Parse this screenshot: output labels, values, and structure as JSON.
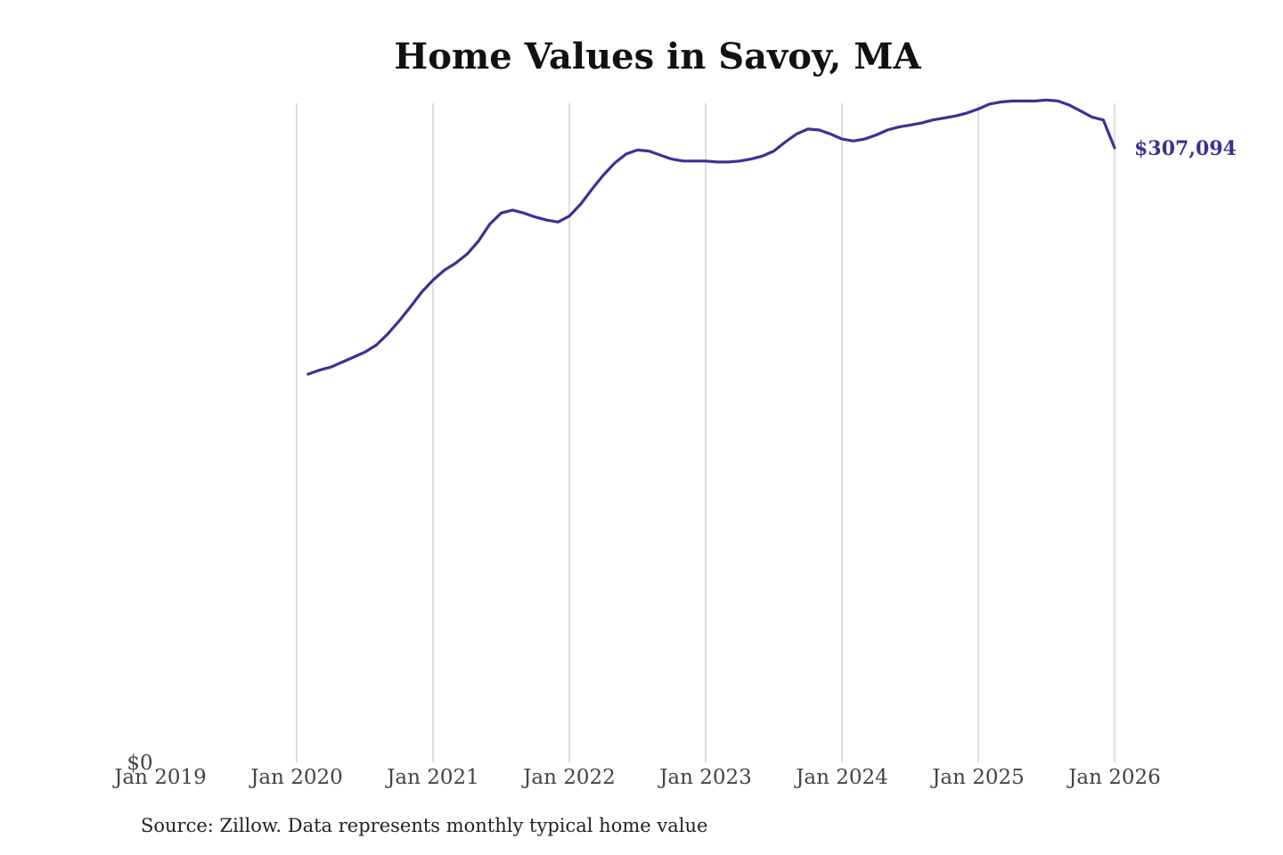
{
  "chart_data": {
    "type": "line",
    "title": "Home Values in Savoy, MA",
    "xlabel": "",
    "ylabel": "",
    "x_ticks": [
      "Jan 2019",
      "Jan 2020",
      "Jan 2021",
      "Jan 2022",
      "Jan 2023",
      "Jan 2024",
      "Jan 2025",
      "Jan 2026"
    ],
    "y_ticks": [
      "$0"
    ],
    "ylim": [
      0,
      324000
    ],
    "grid": "vertical",
    "line_color": "#3a3296",
    "end_label": "$307,094",
    "series": [
      {
        "values": [
          {
            "x": "2020-02",
            "y": 194000
          },
          {
            "x": "2020-03",
            "y": 196000
          },
          {
            "x": "2020-04",
            "y": 197500
          },
          {
            "x": "2020-05",
            "y": 200000
          },
          {
            "x": "2020-06",
            "y": 202500
          },
          {
            "x": "2020-07",
            "y": 205000
          },
          {
            "x": "2020-08",
            "y": 208500
          },
          {
            "x": "2020-09",
            "y": 214000
          },
          {
            "x": "2020-10",
            "y": 220500
          },
          {
            "x": "2020-11",
            "y": 227500
          },
          {
            "x": "2020-12",
            "y": 235000
          },
          {
            "x": "2021-01",
            "y": 241000
          },
          {
            "x": "2021-02",
            "y": 246000
          },
          {
            "x": "2021-03",
            "y": 249500
          },
          {
            "x": "2021-04",
            "y": 254000
          },
          {
            "x": "2021-05",
            "y": 260500
          },
          {
            "x": "2021-06",
            "y": 269000
          },
          {
            "x": "2021-07",
            "y": 274500
          },
          {
            "x": "2021-08",
            "y": 276000
          },
          {
            "x": "2021-09",
            "y": 274500
          },
          {
            "x": "2021-10",
            "y": 272500
          },
          {
            "x": "2021-11",
            "y": 271000
          },
          {
            "x": "2021-12",
            "y": 270000
          },
          {
            "x": "2022-01",
            "y": 273000
          },
          {
            "x": "2022-02",
            "y": 279000
          },
          {
            "x": "2022-03",
            "y": 286500
          },
          {
            "x": "2022-04",
            "y": 293500
          },
          {
            "x": "2022-05",
            "y": 299500
          },
          {
            "x": "2022-06",
            "y": 304000
          },
          {
            "x": "2022-07",
            "y": 306000
          },
          {
            "x": "2022-08",
            "y": 305500
          },
          {
            "x": "2022-09",
            "y": 303500
          },
          {
            "x": "2022-10",
            "y": 301500
          },
          {
            "x": "2022-11",
            "y": 300500
          },
          {
            "x": "2022-12",
            "y": 300500
          },
          {
            "x": "2023-01",
            "y": 300500
          },
          {
            "x": "2023-02",
            "y": 300000
          },
          {
            "x": "2023-03",
            "y": 300000
          },
          {
            "x": "2023-04",
            "y": 300500
          },
          {
            "x": "2023-05",
            "y": 301500
          },
          {
            "x": "2023-06",
            "y": 303000
          },
          {
            "x": "2023-07",
            "y": 305500
          },
          {
            "x": "2023-08",
            "y": 310000
          },
          {
            "x": "2023-09",
            "y": 314000
          },
          {
            "x": "2023-10",
            "y": 316500
          },
          {
            "x": "2023-11",
            "y": 316000
          },
          {
            "x": "2023-12",
            "y": 314000
          },
          {
            "x": "2024-01",
            "y": 311500
          },
          {
            "x": "2024-02",
            "y": 310500
          },
          {
            "x": "2024-03",
            "y": 311500
          },
          {
            "x": "2024-04",
            "y": 313500
          },
          {
            "x": "2024-05",
            "y": 316000
          },
          {
            "x": "2024-06",
            "y": 317500
          },
          {
            "x": "2024-07",
            "y": 318500
          },
          {
            "x": "2024-08",
            "y": 319500
          },
          {
            "x": "2024-09",
            "y": 321000
          },
          {
            "x": "2024-10",
            "y": 322000
          },
          {
            "x": "2024-11",
            "y": 323000
          },
          {
            "x": "2024-12",
            "y": 324500
          },
          {
            "x": "2025-01",
            "y": 326500
          },
          {
            "x": "2025-02",
            "y": 329000
          },
          {
            "x": "2025-03",
            "y": 330000
          },
          {
            "x": "2025-04",
            "y": 330500
          },
          {
            "x": "2025-05",
            "y": 330500
          },
          {
            "x": "2025-06",
            "y": 330500
          },
          {
            "x": "2025-07",
            "y": 331000
          },
          {
            "x": "2025-08",
            "y": 330500
          },
          {
            "x": "2025-09",
            "y": 328500
          },
          {
            "x": "2025-10",
            "y": 325500
          },
          {
            "x": "2025-11",
            "y": 322500
          },
          {
            "x": "2025-12",
            "y": 321000
          },
          {
            "x": "2026-01",
            "y": 307094
          }
        ]
      }
    ]
  },
  "source_note": "Source: Zillow. Data represents monthly typical home value"
}
